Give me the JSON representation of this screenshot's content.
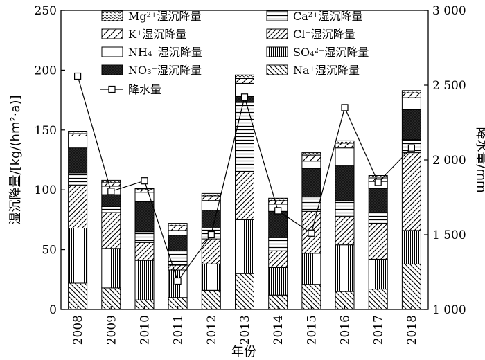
{
  "chart_data": {
    "type": "bar",
    "stacked": true,
    "categories": [
      "2008",
      "2009",
      "2010",
      "2011",
      "2012",
      "2013",
      "2014",
      "2015",
      "2016",
      "2017",
      "2018"
    ],
    "xlabel": "年份",
    "ylabel": "湿沉降量/[kg/(hm²·a)]",
    "y2label": "降水量/mm",
    "ylim": [
      0,
      250
    ],
    "y2lim": [
      1000,
      3000
    ],
    "yticks": [
      "0",
      "50",
      "100",
      "150",
      "200",
      "250"
    ],
    "y2ticks": [
      "1 000",
      "1 500",
      "2 000",
      "2 500",
      "3 000"
    ],
    "legend_position": "top",
    "series": [
      {
        "name": "Na⁺湿沉降量",
        "pattern": "hatch-back",
        "values": [
          22,
          18,
          8,
          10,
          16,
          30,
          12,
          21,
          15,
          17,
          38
        ]
      },
      {
        "name": "SO₄²⁻湿沉降量",
        "pattern": "vlines",
        "values": [
          46,
          33,
          33,
          23,
          22,
          45,
          23,
          26,
          39,
          25,
          28
        ]
      },
      {
        "name": "Cl⁻湿沉降量",
        "pattern": "hatch-fwd",
        "values": [
          36,
          30,
          15,
          4,
          21,
          40,
          14,
          35,
          24,
          30,
          65
        ]
      },
      {
        "name": "Ca²⁺湿沉降量",
        "pattern": "hlines",
        "values": [
          10,
          5,
          9,
          12,
          9,
          58,
          11,
          12,
          13,
          9,
          11
        ]
      },
      {
        "name": "NO₃⁻湿沉降量",
        "pattern": "dark",
        "values": [
          21,
          10,
          25,
          13,
          15,
          5,
          22,
          24,
          29,
          20,
          25
        ]
      },
      {
        "name": "NH₄⁺湿沉降量",
        "pattern": "white",
        "values": [
          10,
          7,
          8,
          4,
          8,
          11,
          6,
          6,
          15,
          6,
          10
        ]
      },
      {
        "name": "K⁺湿沉降量",
        "pattern": "hatch-fwd-sparse",
        "values": [
          2,
          3,
          2,
          4,
          4,
          4,
          3,
          5,
          4,
          3,
          4
        ]
      },
      {
        "name": "Mg²⁺湿沉降量",
        "pattern": "wave",
        "values": [
          2,
          2,
          1,
          2,
          2,
          3,
          2,
          2,
          2,
          2,
          2
        ]
      }
    ],
    "precipitation": {
      "name": "降水量",
      "axis": "right",
      "values": [
        2560,
        1790,
        1860,
        1190,
        1500,
        2420,
        1660,
        1510,
        2350,
        1850,
        2080
      ]
    }
  }
}
